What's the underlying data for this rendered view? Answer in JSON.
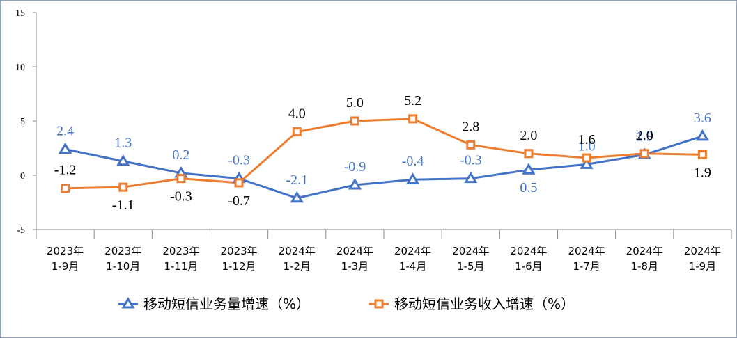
{
  "chart_data": {
    "type": "line",
    "categories": [
      [
        "2023年",
        "1-9月"
      ],
      [
        "2023年",
        "1-10月"
      ],
      [
        "2023年",
        "1-11月"
      ],
      [
        "2023年",
        "1-12月"
      ],
      [
        "2024年",
        "1-2月"
      ],
      [
        "2024年",
        "1-3月"
      ],
      [
        "2024年",
        "1-4月"
      ],
      [
        "2024年",
        "1-5月"
      ],
      [
        "2024年",
        "1-6月"
      ],
      [
        "2024年",
        "1-7月"
      ],
      [
        "2024年",
        "1-8月"
      ],
      [
        "2024年",
        "1-9月"
      ]
    ],
    "series": [
      {
        "name": "移动短信业务量增速（%）",
        "color": "#4472c4",
        "marker": "triangle",
        "values": [
          2.4,
          1.3,
          0.2,
          -0.3,
          -2.1,
          -0.9,
          -0.4,
          -0.3,
          0.5,
          1.0,
          1.9,
          3.6
        ],
        "value_labels": [
          "2.4",
          "1.3",
          "0.2",
          "-0.3",
          "-2.1",
          "-0.9",
          "-0.4",
          "-0.3",
          "0.5",
          "1.0",
          "1.9",
          "3.6"
        ]
      },
      {
        "name": "移动短信业务收入增速（%）",
        "color": "#ed7d31",
        "marker": "square",
        "values": [
          -1.2,
          -1.1,
          -0.3,
          -0.7,
          4.0,
          5.0,
          5.2,
          2.8,
          2.0,
          1.6,
          2.0,
          1.9
        ],
        "value_labels": [
          "-1.2",
          "-1.1",
          "-0.3",
          "-0.7",
          "4.0",
          "5.0",
          "5.2",
          "2.8",
          "2.0",
          "1.6",
          "2.0",
          "1.9"
        ]
      }
    ],
    "ylim": [
      -5,
      15
    ],
    "yticks": [
      -5,
      0,
      5,
      10,
      15
    ],
    "legend": "bottom"
  }
}
